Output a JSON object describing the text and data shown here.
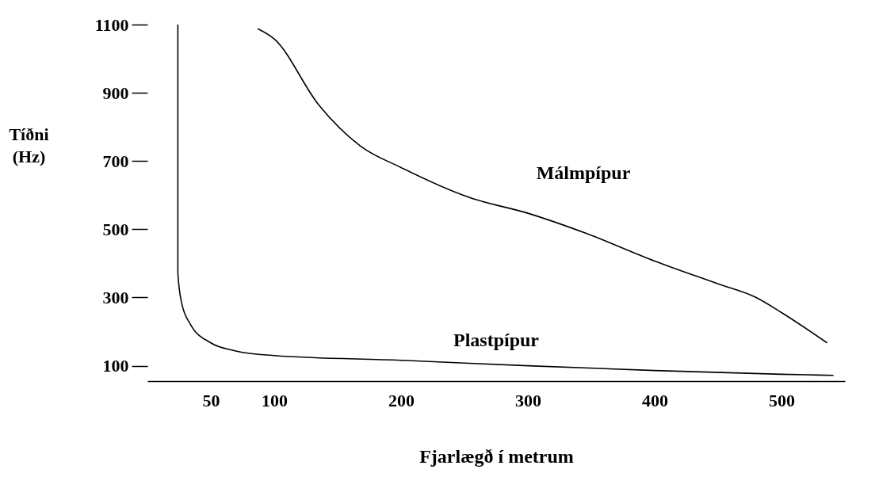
{
  "chart_data": {
    "type": "line",
    "xlabel": "Fjarlægð í metrum",
    "ylabel": "Tíðni (Hz)",
    "xlim": [
      0,
      550
    ],
    "ylim": [
      55,
      1100
    ],
    "xticks": [
      50,
      100,
      200,
      300,
      400,
      500
    ],
    "yticks": [
      100,
      300,
      500,
      700,
      900,
      1100
    ],
    "legend": false,
    "series": [
      {
        "name": "Málmpípur",
        "color": "#000000",
        "x": [
          87,
          100,
          135,
          168,
          200,
          254,
          300,
          346,
          400,
          450,
          480,
          500,
          536
        ],
        "values": [
          1088,
          1058,
          865,
          744,
          681,
          593,
          547,
          488,
          407,
          340,
          300,
          256,
          167
        ]
      },
      {
        "name": "Plastpípur",
        "color": "#000000",
        "x": [
          24,
          24,
          27,
          34,
          50,
          69,
          100,
          200,
          300,
          400,
          500,
          541
        ],
        "values": [
          1100,
          372,
          284,
          221,
          167,
          144,
          130,
          116,
          100,
          86,
          75,
          72
        ]
      }
    ]
  }
}
